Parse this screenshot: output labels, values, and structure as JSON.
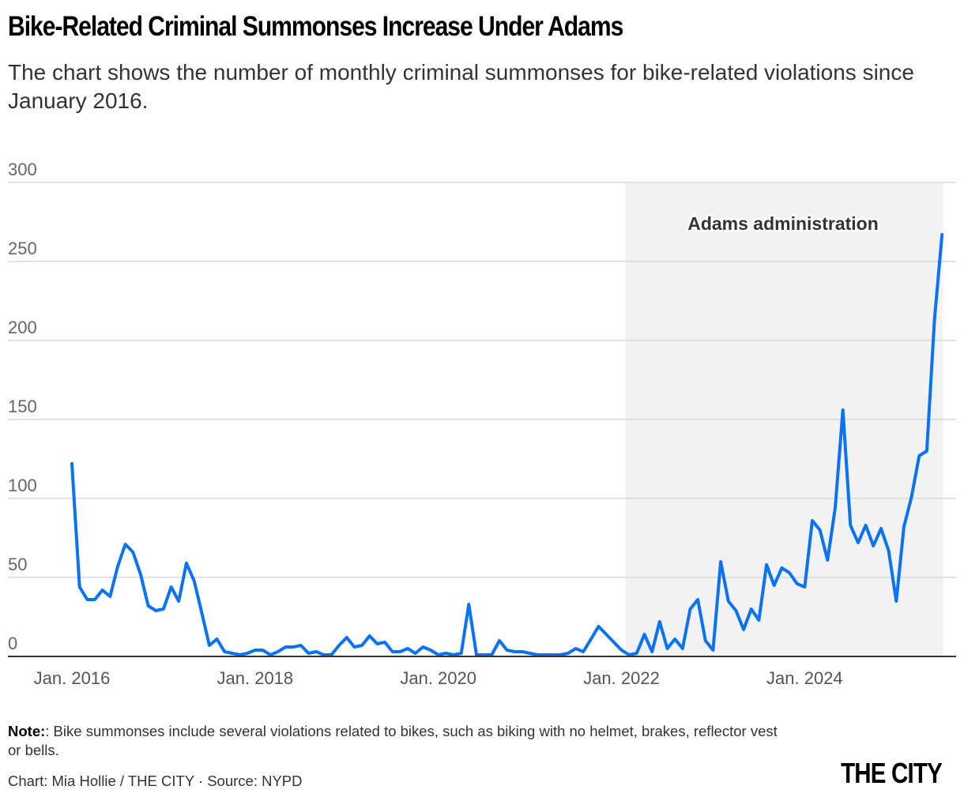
{
  "header": {
    "title": "Bike-Related Criminal Summonses Increase Under Adams",
    "subtitle": "The chart shows the number of monthly criminal summonses for bike-related violations since January 2016."
  },
  "annotation": {
    "label": "Adams administration",
    "start": "Jan. 2022",
    "shade_color": "#f2f2f3"
  },
  "footer": {
    "note_label": "Note:",
    "note_text": ": Bike summonses include several violations related to bikes, such as biking with no helmet, brakes, reflector vest or bells.",
    "credit": "Chart: Mia Hollie / THE CITY · Source: NYPD",
    "logo": "THE CITY"
  },
  "colors": {
    "line": "#0a72f5",
    "grid": "#d9d9d9",
    "axis": "#333333"
  },
  "chart_data": {
    "type": "line",
    "title": "Bike-Related Criminal Summonses Increase Under Adams",
    "subtitle": "The chart shows the number of monthly criminal summonses for bike-related violations since January 2016.",
    "xlabel": "",
    "ylabel": "",
    "ylim": [
      0,
      300
    ],
    "yticks": [
      0,
      50,
      100,
      150,
      200,
      250,
      300
    ],
    "xtick_labels": [
      "Jan. 2016",
      "Jan. 2018",
      "Jan. 2020",
      "Jan. 2022",
      "Jan. 2024"
    ],
    "grid": true,
    "x_start": "2016-01",
    "frequency": "monthly",
    "series": [
      {
        "name": "Monthly bike-related criminal summonses",
        "values": [
          122,
          44,
          36,
          36,
          42,
          38,
          57,
          71,
          66,
          52,
          32,
          29,
          30,
          44,
          35,
          59,
          48,
          28,
          7,
          11,
          3,
          2,
          1,
          2,
          4,
          4,
          1,
          3,
          6,
          6,
          7,
          2,
          3,
          1,
          1,
          7,
          12,
          6,
          7,
          13,
          8,
          9,
          3,
          3,
          5,
          2,
          6,
          4,
          1,
          2,
          1,
          2,
          33,
          1,
          1,
          1,
          10,
          4,
          3,
          3,
          2,
          1,
          1,
          1,
          1,
          2,
          5,
          3,
          11,
          19,
          14,
          9,
          4,
          1,
          2,
          14,
          3,
          22,
          5,
          11,
          5,
          30,
          36,
          10,
          4,
          60,
          35,
          29,
          17,
          30,
          23,
          58,
          45,
          56,
          53,
          46,
          44,
          86,
          80,
          61,
          94,
          156,
          83,
          72,
          83,
          70,
          81,
          67,
          35,
          82,
          101,
          127,
          130,
          213,
          267
        ]
      }
    ],
    "shaded_region": {
      "label": "Adams administration",
      "from": "2022-01",
      "to": "end"
    }
  }
}
